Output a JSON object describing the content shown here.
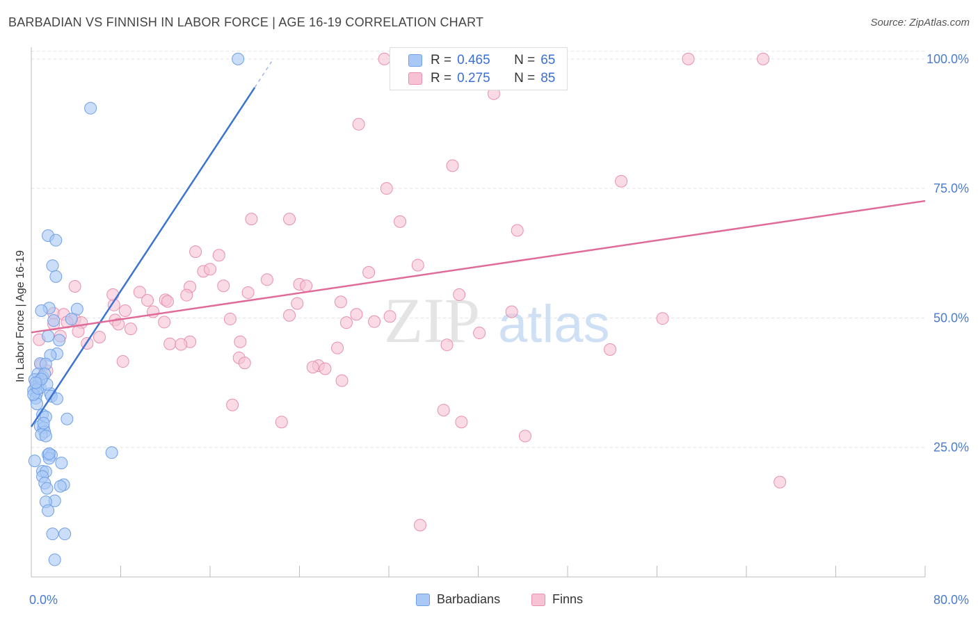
{
  "title": "BARBADIAN VS FINNISH IN LABOR FORCE | AGE 16-19 CORRELATION CHART",
  "source": "Source: ZipAtlas.com",
  "watermark": {
    "zip": "ZIP",
    "atlas": "atlas"
  },
  "legend": [
    {
      "r_label": "R =",
      "r_value": "0.465",
      "n_label": "N =",
      "n_value": "65",
      "color": "#a9c8f5",
      "border": "#6f9fe6"
    },
    {
      "r_label": "R =",
      "r_value": "0.275",
      "n_label": "N =",
      "n_value": "85",
      "color": "#f7c3d4",
      "border": "#e88fae"
    }
  ],
  "bottom_legend": [
    "Barbadians",
    "Finns"
  ],
  "chart_data": {
    "type": "scatter",
    "ylabel": "In Labor Force | Age 16-19",
    "xlim": [
      0,
      80
    ],
    "ylim": [
      0,
      102
    ],
    "x_tick_labels": [
      "0.0%",
      "80.0%"
    ],
    "y_ticks": [
      25,
      50,
      75,
      100
    ],
    "y_tick_labels": [
      "25.0%",
      "50.0%",
      "75.0%",
      "100.0%"
    ],
    "grid": true,
    "series": [
      {
        "name": "Barbadians",
        "color": "#6f9fe6",
        "fill": "#a9c8f5",
        "line_color": "#3a74d0",
        "trend": {
          "x": [
            0,
            20
          ],
          "y": [
            29,
            94.5
          ]
        },
        "trend_ext": {
          "x": [
            20,
            21.5
          ],
          "y": [
            94.5,
            99.5
          ]
        },
        "points": [
          [
            18.5,
            100
          ],
          [
            5.3,
            90.5
          ],
          [
            1.5,
            65.9
          ],
          [
            2.2,
            65
          ],
          [
            1.9,
            60.1
          ],
          [
            2.2,
            58
          ],
          [
            1.6,
            51.9
          ],
          [
            0.9,
            51.4
          ],
          [
            4.1,
            51.7
          ],
          [
            3.6,
            49.8
          ],
          [
            1.5,
            46.5
          ],
          [
            2.5,
            45.7
          ],
          [
            2.3,
            43.1
          ],
          [
            1.7,
            42.8
          ],
          [
            0.8,
            41.2
          ],
          [
            1.3,
            41.1
          ],
          [
            0.6,
            39.2
          ],
          [
            1.0,
            38.6
          ],
          [
            0.3,
            38.1
          ],
          [
            0.7,
            37.8
          ],
          [
            1.2,
            39.2
          ],
          [
            0.4,
            36.7
          ],
          [
            0.8,
            36.5
          ],
          [
            0.2,
            36.0
          ],
          [
            0.5,
            35.5
          ],
          [
            1.7,
            35.4
          ],
          [
            1.8,
            34.9
          ],
          [
            0.4,
            34.5
          ],
          [
            2.3,
            34.4
          ],
          [
            0.5,
            33.4
          ],
          [
            1.0,
            31.3
          ],
          [
            1.3,
            30.9
          ],
          [
            3.2,
            30.5
          ],
          [
            0.8,
            29.1
          ],
          [
            1.1,
            28.8
          ],
          [
            1.2,
            28.0
          ],
          [
            0.9,
            27.5
          ],
          [
            1.3,
            27.2
          ],
          [
            7.2,
            24.0
          ],
          [
            1.5,
            23.6
          ],
          [
            1.8,
            23.5
          ],
          [
            1.6,
            22.9
          ],
          [
            0.3,
            22.4
          ],
          [
            2.7,
            22.0
          ],
          [
            1.0,
            20.4
          ],
          [
            1.3,
            20.3
          ],
          [
            1.0,
            19.4
          ],
          [
            1.2,
            18.1
          ],
          [
            2.9,
            17.8
          ],
          [
            2.6,
            17.5
          ],
          [
            1.4,
            17.1
          ],
          [
            2.1,
            14.7
          ],
          [
            1.3,
            14.5
          ],
          [
            1.5,
            12.8
          ],
          [
            1.9,
            8.3
          ],
          [
            3.0,
            8.3
          ],
          [
            2.1,
            3.3
          ],
          [
            0.2,
            35.2
          ],
          [
            0.6,
            36.4
          ],
          [
            1.4,
            37.2
          ],
          [
            0.9,
            38.2
          ],
          [
            2.0,
            49.5
          ],
          [
            1.1,
            29.7
          ],
          [
            0.4,
            37.5
          ],
          [
            1.6,
            23.8
          ]
        ]
      },
      {
        "name": "Finns",
        "color": "#e88fae",
        "fill": "#f7c3d4",
        "line_color": "#e06b98",
        "trend": {
          "x": [
            0,
            80
          ],
          "y": [
            47.2,
            72.6
          ]
        },
        "points": [
          [
            31.6,
            100
          ],
          [
            35.3,
            100
          ],
          [
            58.8,
            100
          ],
          [
            65.5,
            100
          ],
          [
            41.4,
            93.3
          ],
          [
            29.3,
            87.4
          ],
          [
            37.7,
            79.4
          ],
          [
            31.8,
            75.0
          ],
          [
            52.8,
            76.4
          ],
          [
            43.5,
            66.9
          ],
          [
            19.7,
            69.1
          ],
          [
            23.1,
            69.1
          ],
          [
            33.0,
            68.6
          ],
          [
            34.6,
            60.2
          ],
          [
            14.7,
            62.8
          ],
          [
            16.8,
            62.1
          ],
          [
            15.4,
            59.0
          ],
          [
            16.0,
            59.4
          ],
          [
            30.2,
            58.8
          ],
          [
            21.1,
            57.4
          ],
          [
            14.2,
            56.0
          ],
          [
            17.2,
            56.2
          ],
          [
            24.0,
            56.5
          ],
          [
            24.6,
            56.2
          ],
          [
            3.9,
            56.1
          ],
          [
            7.4,
            52.5
          ],
          [
            7.3,
            54.5
          ],
          [
            9.7,
            55.0
          ],
          [
            12.0,
            53.5
          ],
          [
            12.2,
            53.2
          ],
          [
            10.4,
            53.4
          ],
          [
            13.9,
            54.4
          ],
          [
            19.4,
            54.9
          ],
          [
            23.8,
            52.8
          ],
          [
            27.7,
            53.1
          ],
          [
            38.3,
            54.5
          ],
          [
            43.0,
            51.2
          ],
          [
            8.4,
            51.4
          ],
          [
            10.9,
            51.2
          ],
          [
            2.0,
            50.9
          ],
          [
            2.9,
            50.7
          ],
          [
            3.9,
            49.7
          ],
          [
            3.2,
            49.2
          ],
          [
            4.5,
            49.1
          ],
          [
            11.9,
            49.2
          ],
          [
            7.5,
            49.6
          ],
          [
            17.8,
            49.8
          ],
          [
            23.1,
            50.5
          ],
          [
            29.1,
            50.7
          ],
          [
            28.2,
            49.1
          ],
          [
            30.7,
            49.3
          ],
          [
            32.1,
            50.3
          ],
          [
            56.5,
            49.9
          ],
          [
            7.8,
            48.8
          ],
          [
            2.0,
            48.8
          ],
          [
            8.9,
            47.9
          ],
          [
            4.2,
            47.4
          ],
          [
            0.7,
            45.8
          ],
          [
            2.6,
            46.5
          ],
          [
            6.1,
            46.3
          ],
          [
            14.2,
            45.4
          ],
          [
            12.4,
            45.0
          ],
          [
            13.4,
            44.9
          ],
          [
            5.0,
            45.1
          ],
          [
            18.7,
            45.4
          ],
          [
            37.2,
            44.8
          ],
          [
            40.1,
            47.1
          ],
          [
            27.4,
            44.2
          ],
          [
            51.8,
            43.9
          ],
          [
            18.6,
            42.3
          ],
          [
            8.2,
            41.6
          ],
          [
            19.1,
            41.3
          ],
          [
            25.7,
            40.8
          ],
          [
            25.2,
            40.5
          ],
          [
            26.3,
            40.2
          ],
          [
            27.8,
            37.9
          ],
          [
            18.0,
            33.2
          ],
          [
            36.9,
            32.2
          ],
          [
            22.4,
            29.9
          ],
          [
            38.5,
            29.9
          ],
          [
            44.2,
            27.2
          ],
          [
            67.0,
            18.3
          ],
          [
            34.8,
            10.0
          ],
          [
            0.9,
            41.0
          ],
          [
            1.4,
            39.8
          ]
        ]
      }
    ]
  }
}
